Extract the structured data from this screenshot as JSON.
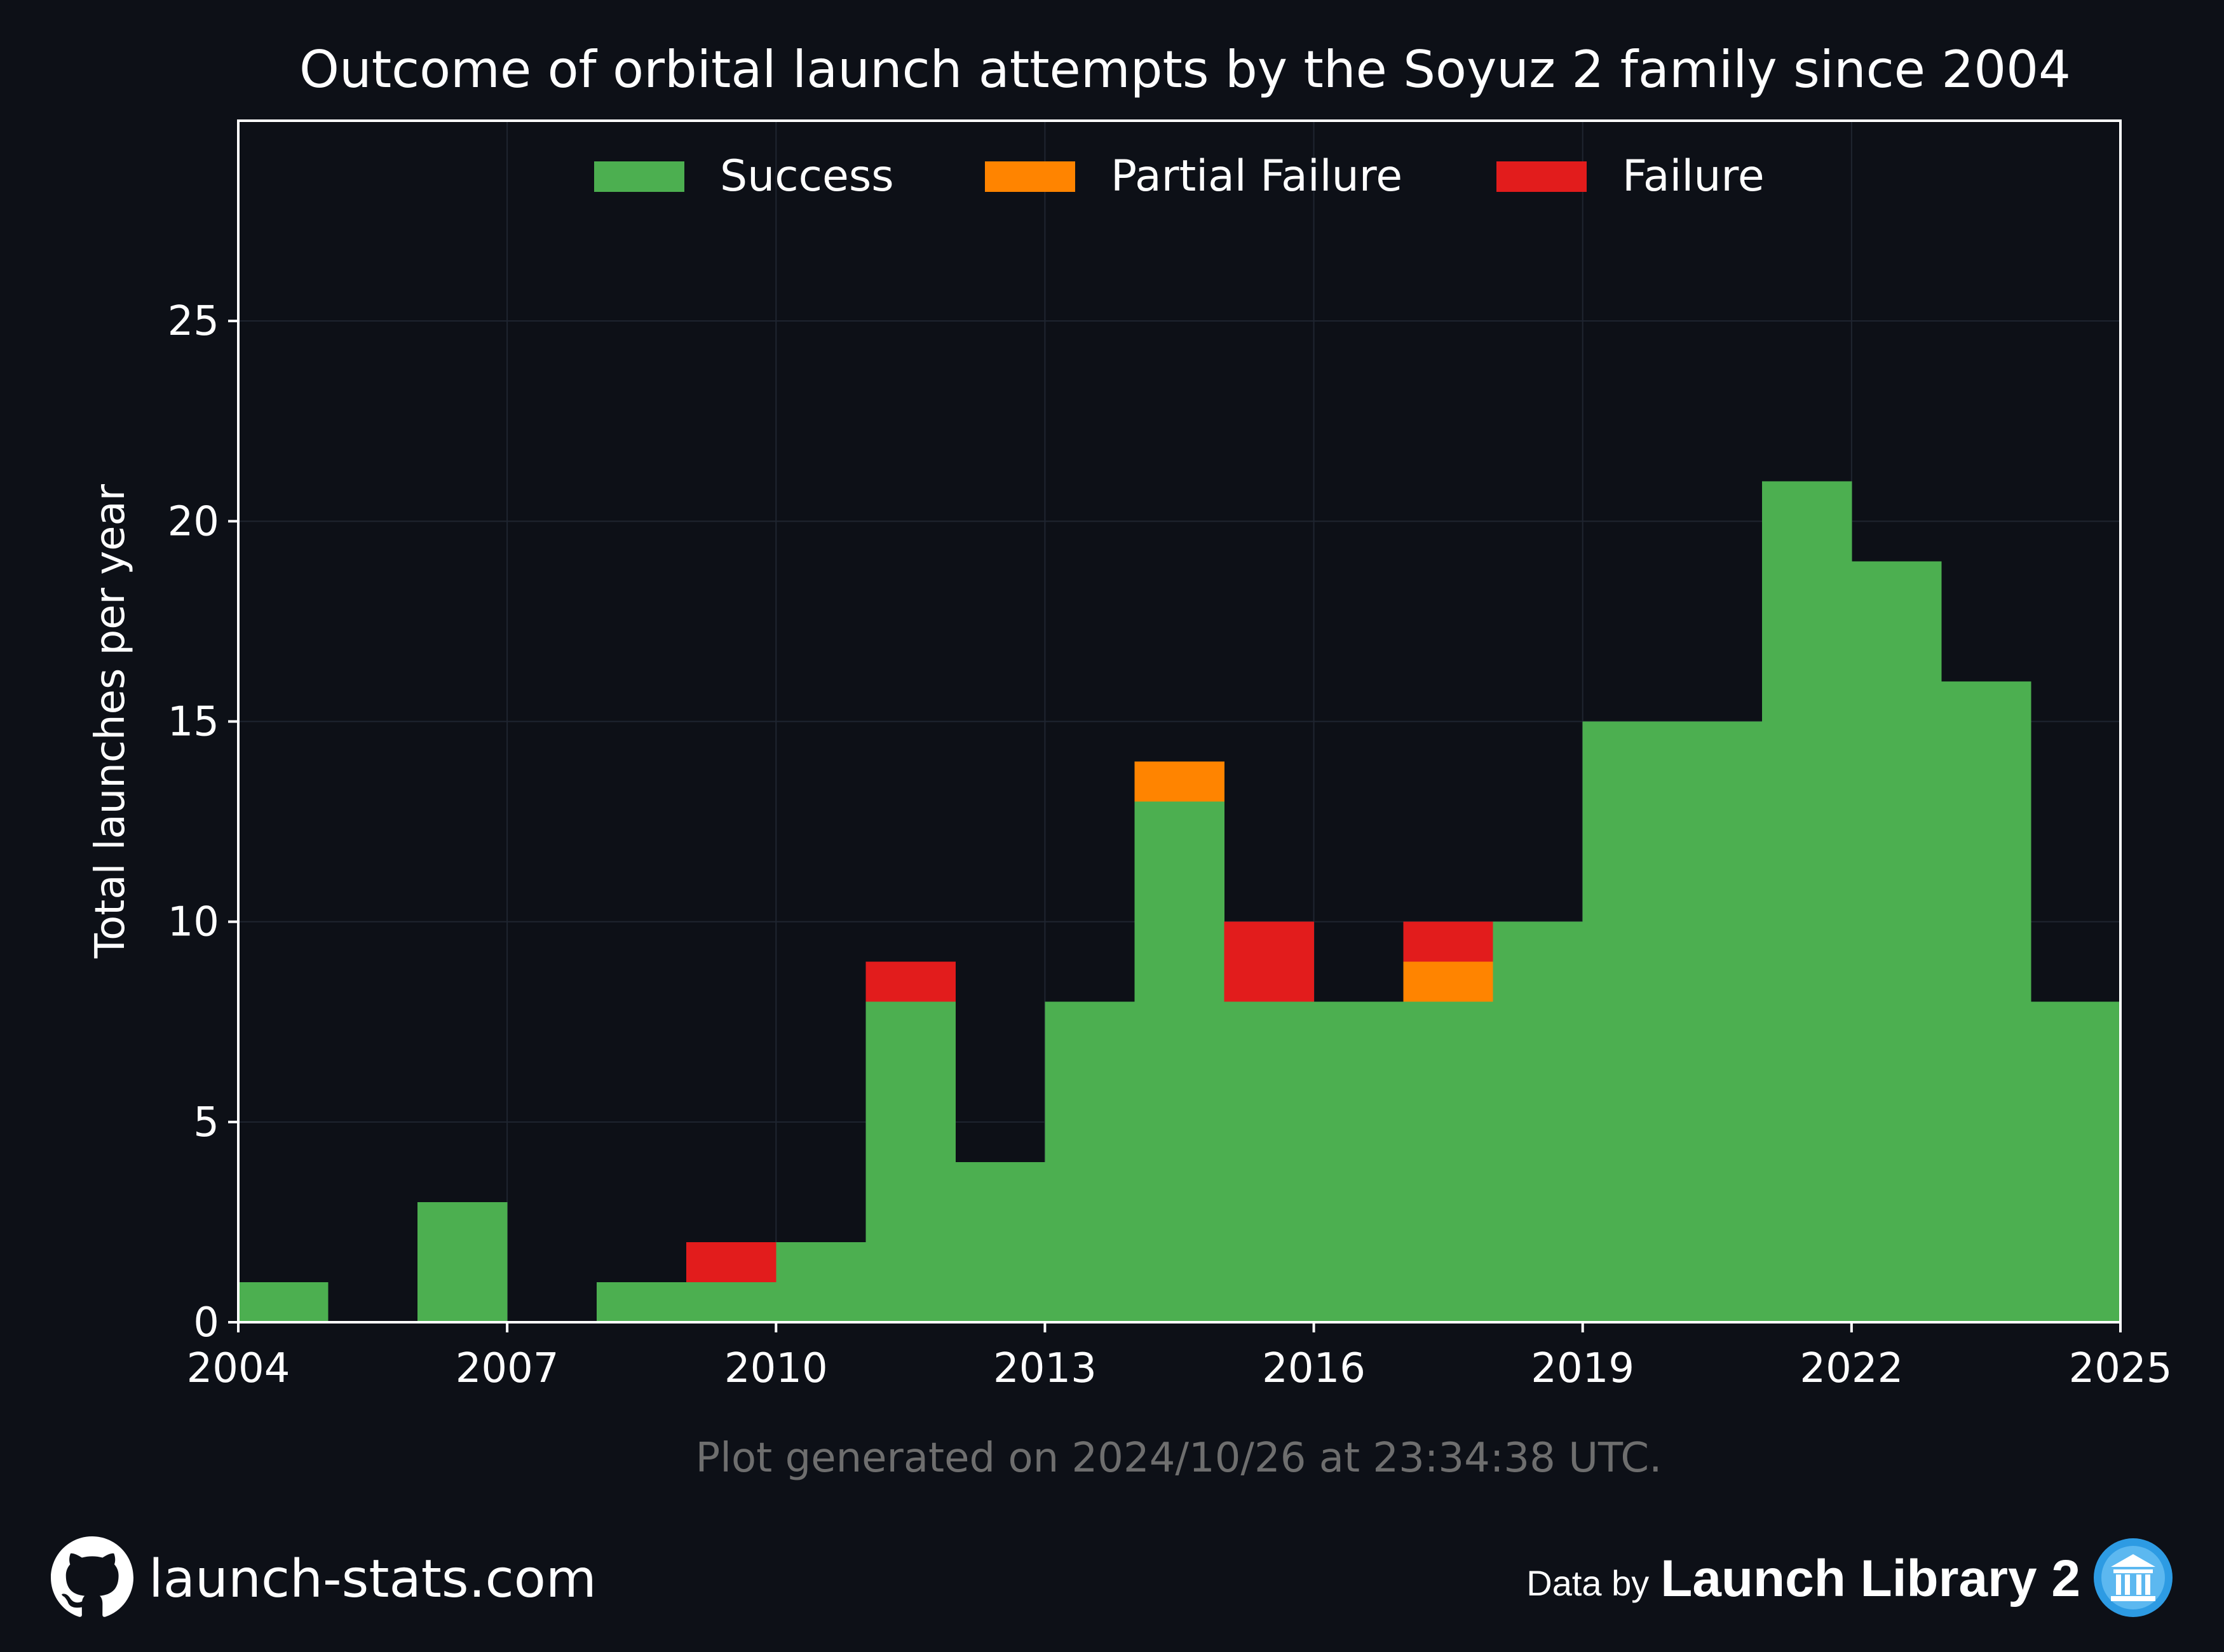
{
  "chart_data": {
    "type": "bar",
    "stacked": true,
    "title": "Outcome of orbital launch attempts by the Soyuz 2 family since 2004",
    "xlabel": "",
    "ylabel": "Total launches per year",
    "xlim": [
      2004,
      2025
    ],
    "ylim": [
      0,
      30
    ],
    "xticks": [
      "2004",
      "2007",
      "2010",
      "2013",
      "2016",
      "2019",
      "2022",
      "2025"
    ],
    "yticks": [
      "0",
      "5",
      "10",
      "15",
      "20",
      "25"
    ],
    "grid": true,
    "legend_position": "top-center",
    "categories": [
      2004,
      2005,
      2006,
      2007,
      2008,
      2009,
      2010,
      2011,
      2012,
      2013,
      2014,
      2015,
      2016,
      2017,
      2018,
      2019,
      2020,
      2021,
      2022,
      2023,
      2024
    ],
    "series": [
      {
        "name": "Success",
        "color": "#4caf50",
        "values": [
          1,
          0,
          3,
          0,
          1,
          1,
          2,
          8,
          4,
          8,
          13,
          8,
          8,
          8,
          10,
          15,
          15,
          21,
          19,
          16,
          8
        ]
      },
      {
        "name": "Partial Failure",
        "color": "#ff8400",
        "values": [
          0,
          0,
          0,
          0,
          0,
          0,
          0,
          0,
          0,
          0,
          1,
          0,
          0,
          1,
          0,
          0,
          0,
          0,
          0,
          0,
          0
        ]
      },
      {
        "name": "Failure",
        "color": "#e21c1c",
        "values": [
          0,
          0,
          0,
          0,
          0,
          1,
          0,
          1,
          0,
          0,
          0,
          2,
          0,
          1,
          0,
          0,
          0,
          0,
          0,
          0,
          0
        ]
      }
    ],
    "annotation": "Plot generated on 2024/10/26 at 23:34:38 UTC."
  },
  "footer": {
    "site": "launch-stats.com",
    "data_prefix": "Data by",
    "data_source": "Launch Library 2"
  },
  "colors": {
    "background": "#0d1017",
    "text": "#ffffff",
    "annotation": "#6e6e6e",
    "grid": "#1f2530"
  }
}
